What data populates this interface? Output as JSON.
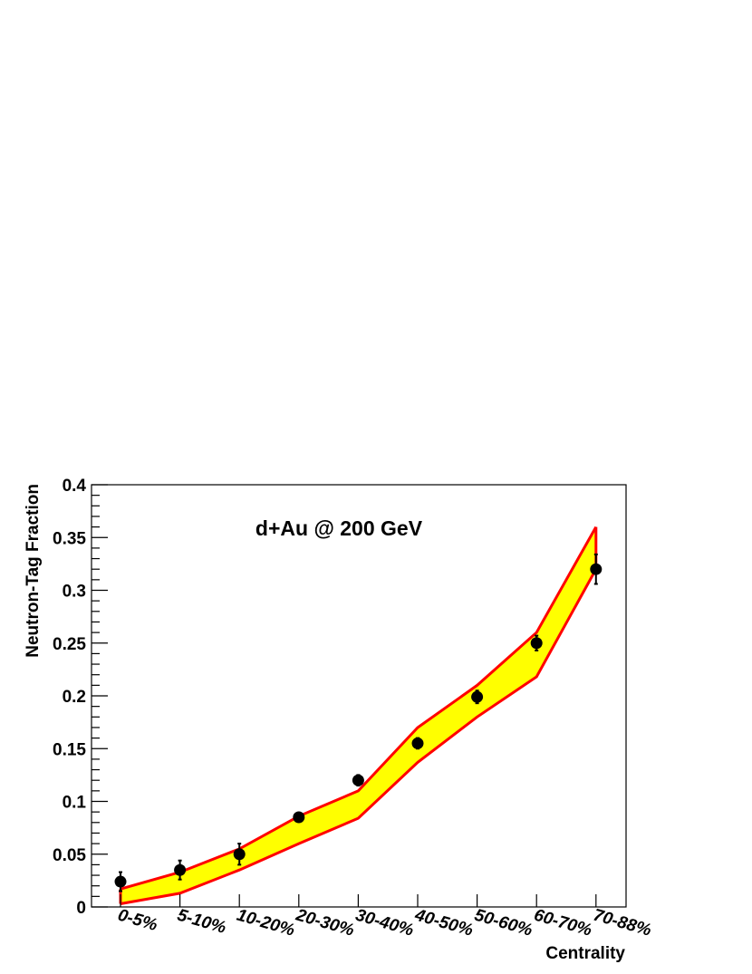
{
  "chart_data": {
    "type": "scatter",
    "title": "d+Au @ 200 GeV",
    "xlabel": "Centrality",
    "ylabel": "Neutron-Tag Fraction",
    "ylim": [
      0,
      0.4
    ],
    "yticks": [
      "0",
      "0.05",
      "0.1",
      "0.15",
      "0.2",
      "0.25",
      "0.3",
      "0.35",
      "0.4"
    ],
    "categories": [
      "0-5%",
      "5-10%",
      "10-20%",
      "20-30%",
      "30-40%",
      "40-50%",
      "50-60%",
      "60-70%",
      "70-88%"
    ],
    "series": [
      {
        "type": "points",
        "values": [
          0.024,
          0.035,
          0.05,
          0.085,
          0.12,
          0.155,
          0.199,
          0.25,
          0.32
        ],
        "errors": [
          0.009,
          0.009,
          0.01,
          0.004,
          0.005,
          0.005,
          0.006,
          0.007,
          0.014
        ],
        "color": "#000000"
      },
      {
        "type": "band",
        "upper": [
          0.017,
          0.033,
          0.055,
          0.086,
          0.11,
          0.17,
          0.21,
          0.26,
          0.36
        ],
        "lower": [
          0.003,
          0.013,
          0.035,
          0.06,
          0.084,
          0.137,
          0.18,
          0.218,
          0.32
        ],
        "fill": "#ffff00",
        "stroke": "#ff0000"
      }
    ],
    "grid": false,
    "legend": "none"
  }
}
